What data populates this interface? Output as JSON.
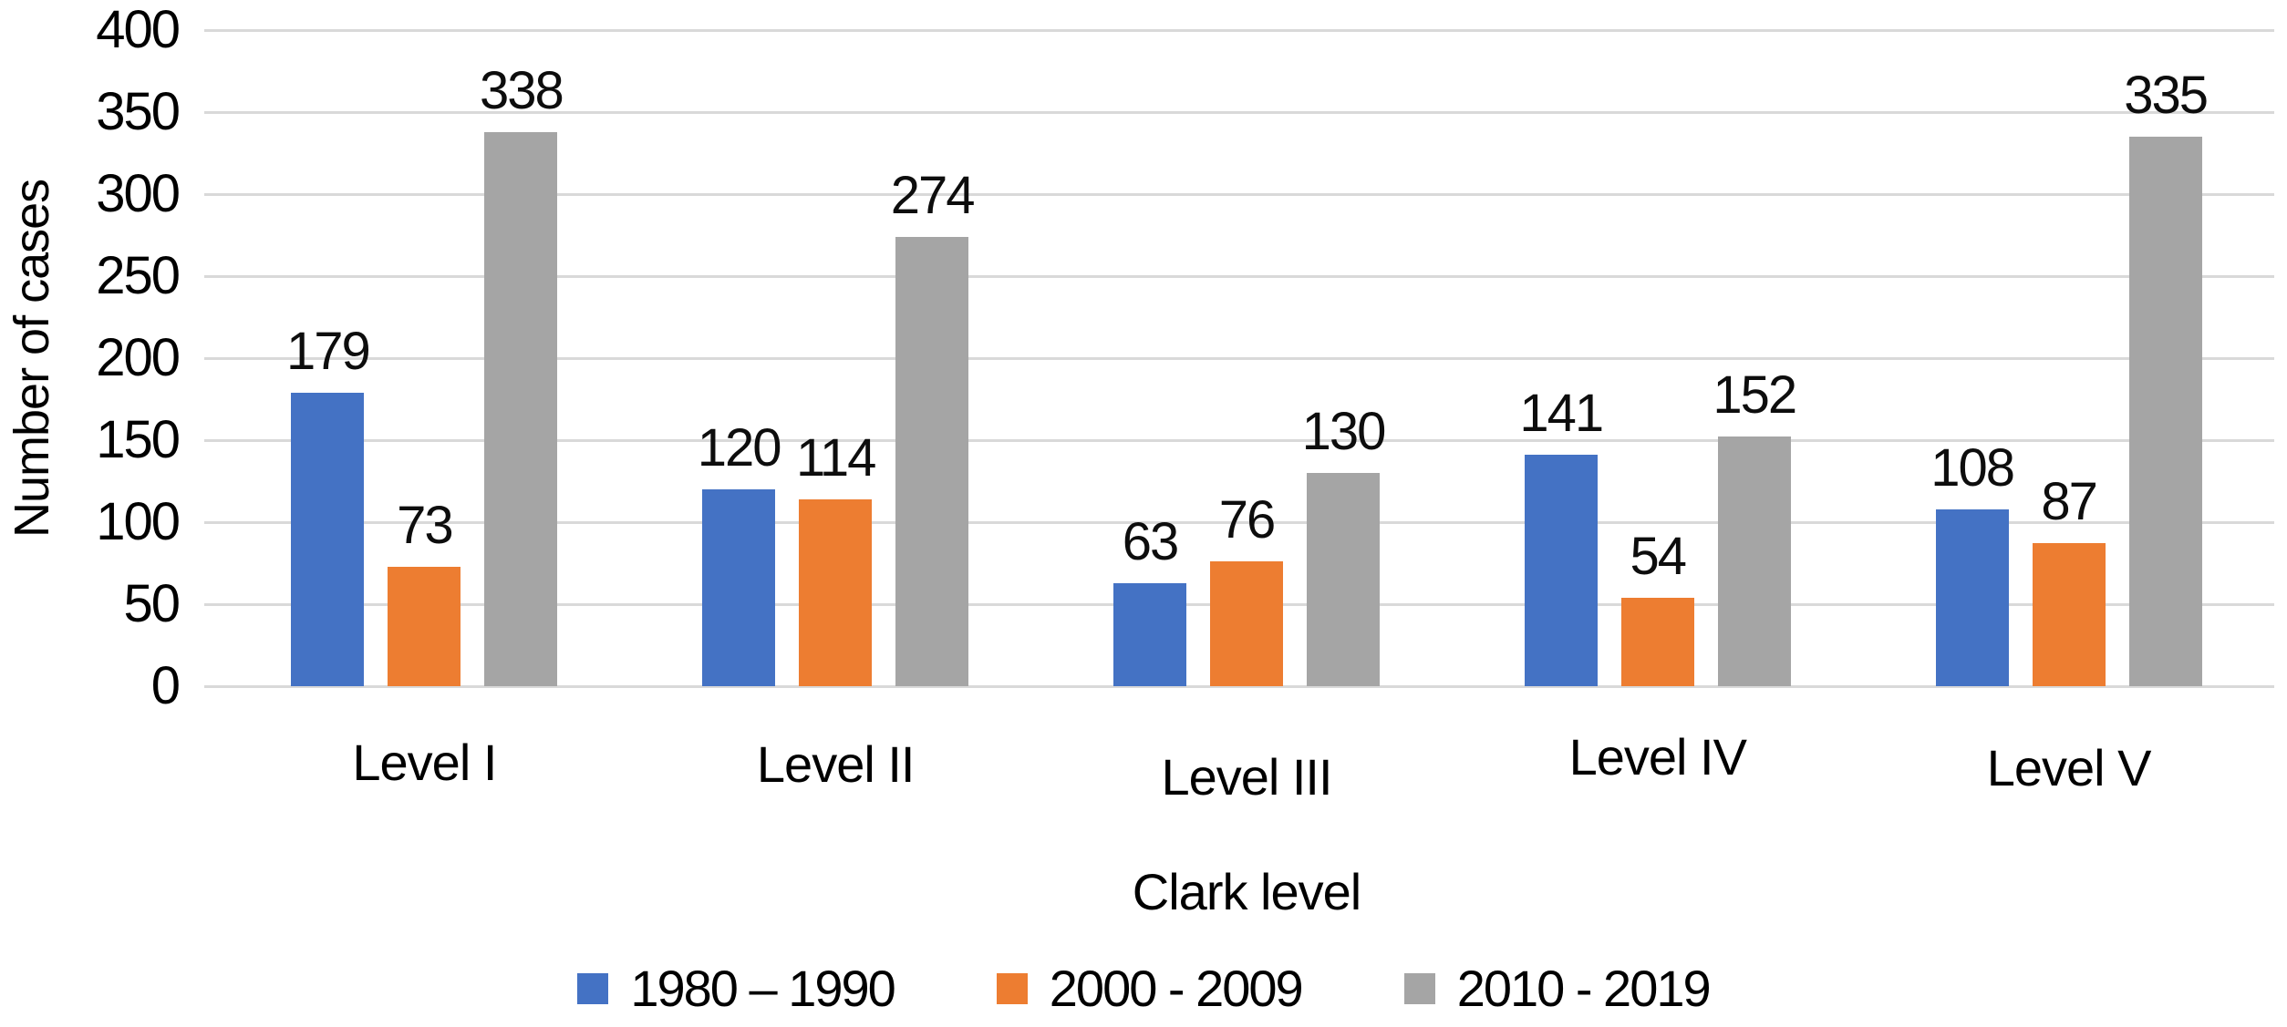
{
  "chart_data": {
    "type": "bar",
    "title": "",
    "xlabel": "Clark level",
    "ylabel": "Number of cases",
    "ylim": [
      0,
      400
    ],
    "ytick_step": 50,
    "yticks": [
      0,
      50,
      100,
      150,
      200,
      250,
      300,
      350,
      400
    ],
    "grid": true,
    "grid_color": "#D9D9D9",
    "legend_position": "bottom",
    "categories": [
      "Level I",
      "Level II",
      "Level III",
      "Level IV",
      "Level V"
    ],
    "series": [
      {
        "name": "1980 – 1990",
        "color": "#4472C4",
        "values": [
          179,
          120,
          63,
          141,
          108
        ]
      },
      {
        "name": "2000 - 2009",
        "color": "#ED7D31",
        "values": [
          73,
          114,
          76,
          54,
          87
        ]
      },
      {
        "name": "2010 - 2019",
        "color": "#A5A5A5",
        "values": [
          338,
          274,
          130,
          152,
          335
        ]
      }
    ],
    "data_label_color": "#0d0d0d"
  }
}
